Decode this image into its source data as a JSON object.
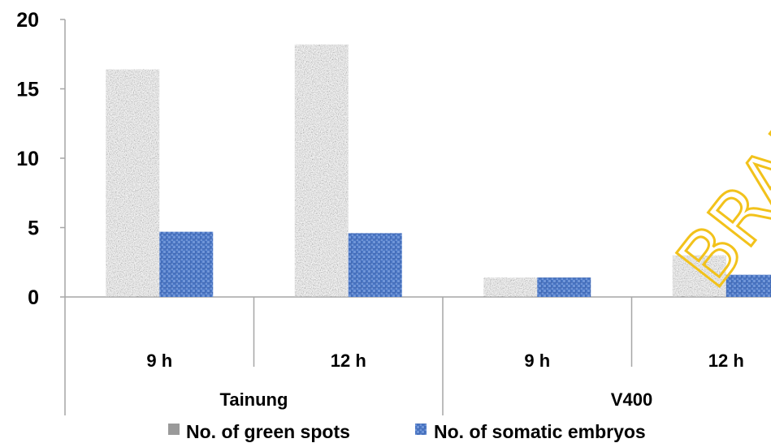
{
  "chart_data": {
    "type": "bar",
    "groups": [
      {
        "label": "Tainung",
        "categories": [
          "9 h",
          "12 h"
        ]
      },
      {
        "label": "V400",
        "categories": [
          "9 h",
          "12 h"
        ]
      }
    ],
    "categories": [
      "9 h",
      "12 h",
      "9 h",
      "12 h"
    ],
    "series": [
      {
        "name": "No. of green spots",
        "values": [
          16.4,
          18.2,
          1.4,
          3.0
        ]
      },
      {
        "name": "No. of somatic embryos",
        "values": [
          4.7,
          4.6,
          1.4,
          1.6
        ]
      }
    ],
    "ylim": [
      0,
      20
    ],
    "yticks": [
      "0",
      "5",
      "10",
      "15",
      "20"
    ],
    "legend_position": "bottom",
    "grid": false
  },
  "watermark": "BRAP",
  "colors": {
    "green_spots": "#9a9a9a",
    "somatic_embryos": "#4a76c4",
    "axis": "#a6a6a6",
    "watermark": "#f2c21b"
  }
}
